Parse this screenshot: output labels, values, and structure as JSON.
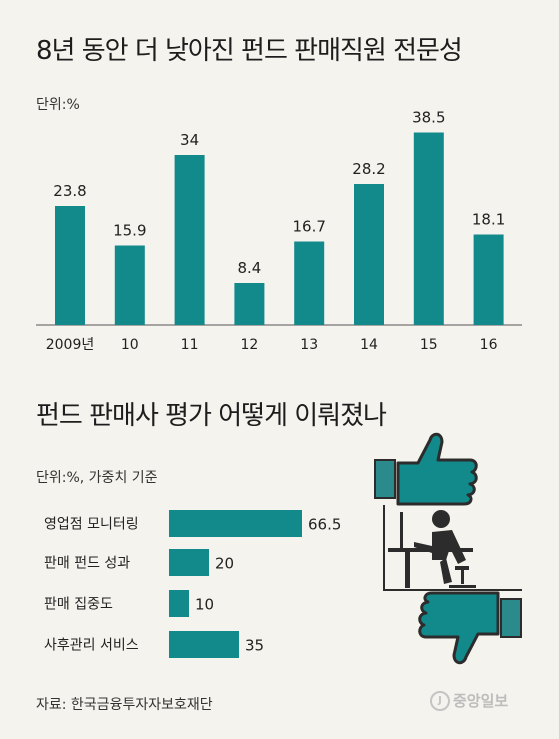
{
  "chart_data": [
    {
      "type": "bar",
      "title": "8년 동안 더 낮아진 펀드 판매직원 전문성",
      "unit_label": "단위:%",
      "categories": [
        "2009년",
        "10",
        "11",
        "12",
        "13",
        "14",
        "15",
        "16"
      ],
      "values": [
        23.8,
        15.9,
        34,
        8.4,
        16.7,
        28.2,
        38.5,
        18.1
      ],
      "value_labels": [
        "23.8",
        "15.9",
        "34",
        "8.4",
        "16.7",
        "28.2",
        "38.5",
        "18.1"
      ],
      "ylim": [
        0,
        40
      ],
      "color": "#12898b"
    },
    {
      "type": "bar",
      "orientation": "horizontal",
      "title": "펀드 판매사 평가 어떻게 이뤄졌나",
      "unit_label": "단위:%, 가중치 기준",
      "categories": [
        "영업점 모니터링",
        "판매 펀드 성과",
        "판매 집중도",
        "사후관리 서비스"
      ],
      "values": [
        66.5,
        20,
        10,
        35
      ],
      "value_labels": [
        "66.5",
        "20",
        "10",
        "35"
      ],
      "xlim": [
        0,
        100
      ],
      "color": "#12898b"
    }
  ],
  "source": "자료: 한국금융투자자보호재단",
  "logo": "중앙일보",
  "icons": [
    "thumbs-up-icon",
    "person-at-computer-icon",
    "thumbs-down-icon"
  ]
}
